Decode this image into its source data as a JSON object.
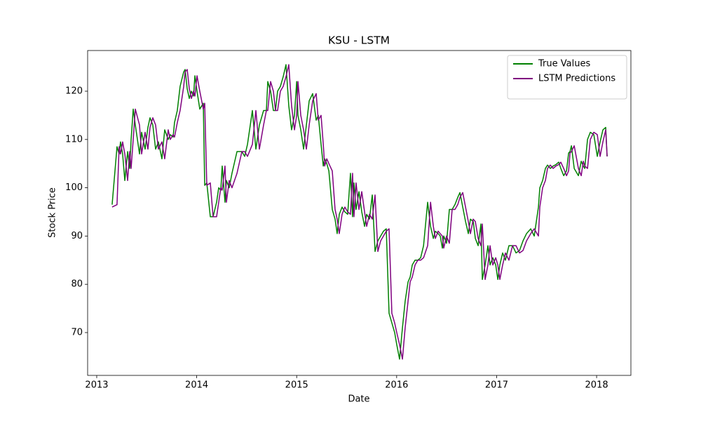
{
  "chart_data": {
    "type": "line",
    "title": "KSU - LSTM",
    "xlabel": "Date",
    "ylabel": "Stock Price",
    "x": [
      2013.154,
      2013.203,
      2013.224,
      2013.238,
      2013.259,
      2013.281,
      2013.309,
      2013.33,
      2013.344,
      2013.365,
      2013.386,
      2013.428,
      2013.449,
      2013.484,
      2013.512,
      2013.533,
      2013.561,
      2013.589,
      2013.617,
      2013.652,
      2013.68,
      2013.715,
      2013.736,
      2013.764,
      2013.778,
      2013.806,
      2013.834,
      2013.87,
      2013.884,
      2013.905,
      2013.926,
      2013.947,
      2013.968,
      2013.982,
      2014.003,
      2014.031,
      2014.066,
      2014.08,
      2014.101,
      2014.136,
      2014.164,
      2014.199,
      2014.22,
      2014.241,
      2014.255,
      2014.283,
      2014.297,
      2014.325,
      2014.353,
      2014.403,
      2014.452,
      2014.48,
      2014.508,
      2014.557,
      2014.592,
      2014.627,
      2014.669,
      2014.697,
      2014.711,
      2014.739,
      2014.767,
      2014.788,
      2014.809,
      2014.837,
      2014.865,
      2014.893,
      2014.921,
      2014.949,
      2014.978,
      2015.0,
      2015.013,
      2015.041,
      2015.069,
      2015.097,
      2015.125,
      2015.16,
      2015.195,
      2015.216,
      2015.244,
      2015.266,
      2015.28,
      2015.301,
      2015.322,
      2015.356,
      2015.384,
      2015.405,
      2015.426,
      2015.454,
      2015.482,
      2015.51,
      2015.538,
      2015.559,
      2015.573,
      2015.594,
      2015.623,
      2015.651,
      2015.679,
      2015.7,
      2015.728,
      2015.756,
      2015.784,
      2015.812,
      2015.84,
      2015.868,
      2015.896,
      2015.924,
      2015.952,
      2015.98,
      2016.001,
      2016.029,
      2016.058,
      2016.085,
      2016.114,
      2016.135,
      2016.156,
      2016.184,
      2016.212,
      2016.24,
      2016.269,
      2016.31,
      2016.339,
      2016.367,
      2016.387,
      2016.415,
      2016.436,
      2016.457,
      2016.471,
      2016.499,
      2016.527,
      2016.555,
      2016.583,
      2016.611,
      2016.633,
      2016.661,
      2016.689,
      2016.717,
      2016.738,
      2016.766,
      2016.787,
      2016.815,
      2016.843,
      2016.857,
      2016.885,
      2016.913,
      2016.934,
      2016.962,
      2016.991,
      2017.012,
      2017.032,
      2017.06,
      2017.088,
      2017.123,
      2017.159,
      2017.194,
      2017.229,
      2017.264,
      2017.299,
      2017.341,
      2017.376,
      2017.418,
      2017.432,
      2017.46,
      2017.488,
      2017.509,
      2017.537,
      2017.565,
      2017.593,
      2017.621,
      2017.642,
      2017.671,
      2017.699,
      2017.72,
      2017.734,
      2017.748,
      2017.776,
      2017.818,
      2017.846,
      2017.867,
      2017.881,
      2017.909,
      2017.937,
      2017.972,
      2018.007,
      2018.035,
      2018.063,
      2018.091,
      2018.105
    ],
    "series": [
      {
        "name": "True Values",
        "color": "#008000",
        "values": [
          96.5,
          108.5,
          107,
          109.5,
          107,
          101.5,
          107.5,
          104,
          110,
          116.3,
          113,
          107,
          111.5,
          108,
          112.5,
          114.5,
          113,
          108,
          109.5,
          106,
          112,
          110,
          111,
          110.5,
          113.5,
          116,
          121,
          124,
          124.5,
          120.5,
          118.5,
          120,
          119,
          123.2,
          120,
          116.3,
          117.5,
          100.5,
          101,
          94,
          94,
          97,
          100,
          99.5,
          104.5,
          97,
          101.5,
          100,
          103,
          107.5,
          107.5,
          106.5,
          109,
          116,
          108,
          113,
          116,
          116,
          122,
          120,
          116,
          116,
          120,
          121,
          123,
          125.5,
          117,
          112,
          115,
          122,
          115,
          112,
          108,
          113,
          118,
          119.5,
          114,
          115,
          109,
          104.5,
          106,
          105,
          103.5,
          95.5,
          93.5,
          90.5,
          94.5,
          96,
          95,
          94.5,
          103,
          94,
          101,
          95.5,
          99.2,
          95,
          92,
          94.5,
          93.5,
          98.5,
          86.8,
          89,
          90,
          91,
          91.5,
          74,
          72,
          70,
          67.5,
          64.5,
          71,
          76.5,
          80.5,
          81.5,
          84,
          85,
          85,
          85.5,
          88,
          97,
          92,
          89.5,
          91,
          90.5,
          90,
          87.5,
          90,
          88.5,
          95.5,
          95.5,
          96.5,
          98,
          99,
          96,
          93,
          90.5,
          93.5,
          93,
          89.5,
          88,
          92.5,
          81,
          84,
          88,
          84,
          85.5,
          84,
          81,
          84,
          86.5,
          85,
          88,
          88,
          86.5,
          87,
          89,
          90.5,
          91.5,
          90,
          96,
          100,
          101.5,
          104,
          104.7,
          104,
          104.5,
          104.8,
          105.3,
          104,
          102.5,
          103.5,
          107.2,
          107.5,
          108.7,
          104,
          102.5,
          105.5,
          104.5,
          104,
          110,
          111.5,
          111,
          106.5,
          109.5,
          112,
          112.5,
          106.5
        ]
      },
      {
        "name": "LSTM Predictions",
        "color": "#800080",
        "values": [
          96,
          96.5,
          108.5,
          107,
          109.5,
          107,
          101.5,
          107.5,
          104,
          110,
          116.3,
          113,
          107,
          111.5,
          108,
          112.5,
          114.5,
          113,
          108,
          109.5,
          106,
          112,
          110,
          111,
          110.5,
          113.5,
          116,
          121,
          124,
          124.5,
          120.5,
          118.5,
          120,
          119,
          123.2,
          120,
          116.3,
          117.5,
          100.5,
          101,
          94,
          94,
          97,
          100,
          99.5,
          104.5,
          97,
          101.5,
          100,
          103,
          107.5,
          107.5,
          106.5,
          109,
          116,
          108,
          113,
          116,
          116,
          122,
          120,
          116,
          116,
          120,
          121,
          123,
          125.5,
          117,
          112,
          115,
          122,
          115,
          112,
          108,
          113,
          118,
          119.5,
          114,
          115,
          109,
          104.5,
          106,
          105,
          103.5,
          95.5,
          93.5,
          90.5,
          94.5,
          96,
          95,
          94.5,
          103,
          94,
          101,
          95.5,
          99.2,
          95,
          92,
          94.5,
          93.5,
          98.5,
          86.8,
          89,
          90,
          91,
          91.5,
          74,
          72,
          70,
          67.5,
          64.5,
          71,
          76.5,
          80.5,
          81.5,
          84,
          85,
          85,
          85.5,
          88,
          97,
          92,
          89.5,
          91,
          90.5,
          90,
          87.5,
          90,
          88.5,
          95.5,
          95.5,
          96.5,
          98,
          99,
          96,
          93,
          90.5,
          93.5,
          93,
          89.5,
          88,
          92.5,
          81,
          84,
          88,
          84,
          85.5,
          84,
          81,
          84,
          86.5,
          85,
          88,
          88,
          86.5,
          87,
          89,
          90.5,
          91.5,
          90,
          96,
          100,
          101.5,
          104,
          104.7,
          104,
          104.5,
          104.8,
          105.3,
          104,
          102.5,
          103.5,
          107.2,
          107.5,
          108.7,
          104,
          102.5,
          105.5,
          104.5,
          104,
          110,
          111.5,
          111,
          106.5,
          109.5,
          112,
          106.5
        ]
      }
    ],
    "xlim": [
      2012.909,
      2018.343
    ],
    "xticks": [
      2013,
      2014,
      2015,
      2016,
      2017,
      2018
    ],
    "ylim": [
      61.13,
      128.43
    ],
    "yticks": [
      70,
      80,
      90,
      100,
      110,
      120
    ],
    "grid": false,
    "legend": "upper right"
  }
}
